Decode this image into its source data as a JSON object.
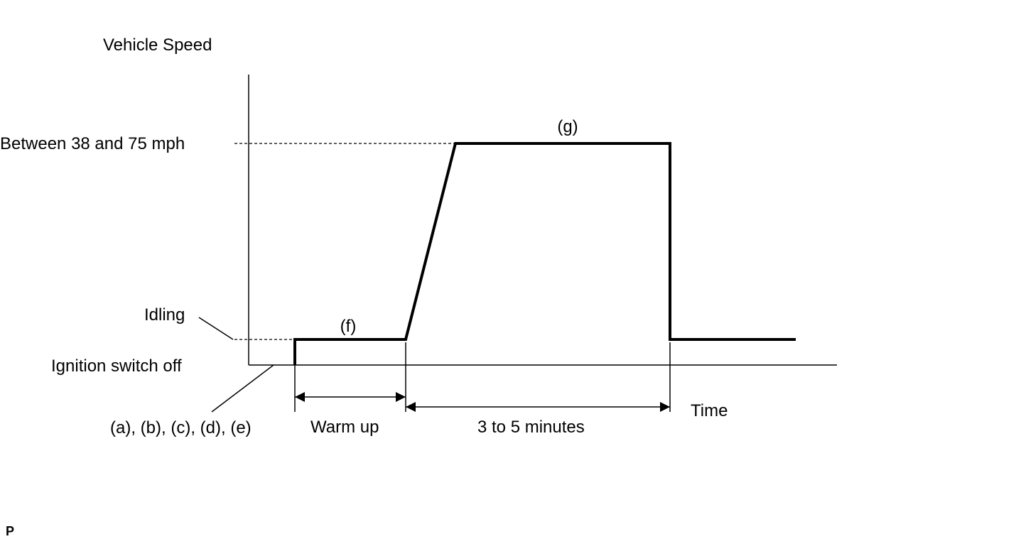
{
  "axes": {
    "y_label": "Vehicle Speed",
    "x_label": "Time"
  },
  "levels": {
    "high": "Between 38 and 75 mph",
    "idle": "Idling",
    "off": "Ignition switch off"
  },
  "steps": {
    "start": "(a), (b), (c), (d), (e)",
    "warm": "(f)",
    "drive": "(g)"
  },
  "durations": {
    "warm": "Warm up",
    "drive": "3 to 5 minutes"
  },
  "footer": "P"
}
